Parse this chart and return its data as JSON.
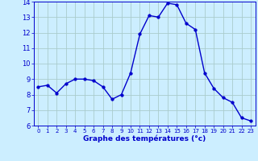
{
  "x": [
    0,
    1,
    2,
    3,
    4,
    5,
    6,
    7,
    8,
    9,
    10,
    11,
    12,
    13,
    14,
    15,
    16,
    17,
    18,
    19,
    20,
    21,
    22,
    23
  ],
  "y": [
    8.5,
    8.6,
    8.1,
    8.7,
    9.0,
    9.0,
    8.9,
    8.5,
    7.7,
    8.0,
    9.4,
    11.9,
    13.1,
    13.0,
    13.9,
    13.8,
    12.6,
    12.2,
    9.4,
    8.4,
    7.8,
    7.5,
    6.5,
    6.3
  ],
  "line_color": "#0000cc",
  "marker_color": "#0000cc",
  "bg_color": "#cceeff",
  "grid_color": "#aacccc",
  "axis_color": "#0000cc",
  "xlabel": "Graphe des températures (°c)",
  "xlabel_color": "#0000cc",
  "tick_color": "#0000cc",
  "ylim": [
    6,
    14
  ],
  "xlim": [
    -0.5,
    23.5
  ],
  "yticks": [
    6,
    7,
    8,
    9,
    10,
    11,
    12,
    13,
    14
  ],
  "xticks": [
    0,
    1,
    2,
    3,
    4,
    5,
    6,
    7,
    8,
    9,
    10,
    11,
    12,
    13,
    14,
    15,
    16,
    17,
    18,
    19,
    20,
    21,
    22,
    23
  ],
  "marker_size": 2.5,
  "line_width": 1.0
}
